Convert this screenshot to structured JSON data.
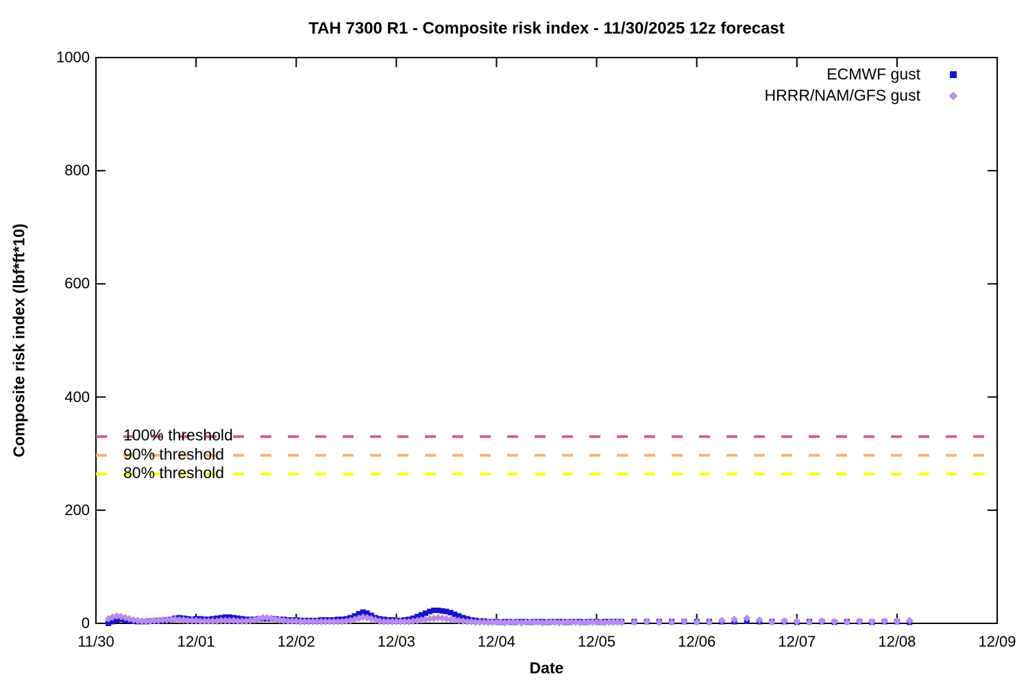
{
  "chart_data": {
    "type": "scatter",
    "title": "TAH 7300 R1 - Composite risk index - 11/30/2025 12z forecast",
    "xlabel": "Date",
    "ylabel": "Composite risk index (lbf*ft*10)",
    "x_tick_labels": [
      "11/30",
      "12/01",
      "12/02",
      "12/03",
      "12/04",
      "12/05",
      "12/06",
      "12/07",
      "12/08",
      "12/09"
    ],
    "x_range_days": [
      0,
      9
    ],
    "y_ticks": [
      0,
      200,
      400,
      600,
      800,
      1000
    ],
    "ylim": [
      0,
      1000
    ],
    "grid": false,
    "legend_position": "top-right-inside",
    "axis_color": "#000000",
    "background_color": "#ffffff",
    "thresholds": [
      {
        "label": "100% threshold",
        "value": 330,
        "color": "#d96075"
      },
      {
        "label": "90% threshold",
        "value": 297,
        "color": "#f7b36e"
      },
      {
        "label": "80% threshold",
        "value": 264,
        "color": "#ffff00"
      }
    ],
    "series": [
      {
        "name": "ECMWF gust",
        "marker": "square",
        "color": "#1414cc",
        "segments": [
          {
            "start_day": 0.125,
            "step_days": 0.0416667,
            "values": [
              0,
              3,
              6,
              7,
              6,
              5,
              4,
              3,
              3,
              3,
              4,
              4,
              5,
              5,
              6,
              7,
              9,
              10,
              9,
              8,
              7,
              8,
              8,
              7,
              7,
              8,
              9,
              10,
              11,
              11,
              10,
              9,
              8,
              7,
              7,
              7,
              8,
              8,
              8,
              8,
              8,
              7,
              7,
              6,
              6,
              6,
              5,
              5,
              5,
              5,
              5,
              6,
              6,
              6,
              6,
              7,
              7,
              8,
              10,
              13,
              17,
              20,
              18,
              14,
              10,
              8,
              7,
              6,
              6,
              5,
              5,
              6,
              7,
              9,
              12,
              15,
              18,
              21,
              23,
              23,
              22,
              21,
              19,
              16,
              13,
              10,
              8,
              6,
              5,
              4,
              4,
              3,
              3,
              3,
              2,
              3,
              3,
              2,
              3,
              3,
              3,
              2,
              3,
              3,
              3,
              2,
              3,
              3,
              3,
              3,
              2,
              3,
              3,
              3,
              2,
              3,
              3,
              3,
              2,
              3,
              3,
              3,
              3
            ]
          },
          {
            "start_day": 5.25,
            "step_days": 0.125,
            "values": [
              3,
              3,
              3,
              3,
              3,
              3,
              3,
              3,
              3,
              3,
              4,
              3,
              3,
              3,
              2,
              3,
              3,
              2,
              3,
              3,
              2,
              3,
              3,
              2
            ]
          }
        ]
      },
      {
        "name": "HRRR/NAM/GFS gust",
        "marker": "diamond",
        "color": "#b88cf0",
        "segments": [
          {
            "start_day": 0.125,
            "step_days": 0.0416667,
            "values": [
              8,
              11,
              13,
              12,
              10,
              8,
              6,
              5,
              4,
              4,
              4,
              5,
              5,
              6,
              6,
              7,
              7,
              6,
              6,
              5,
              5,
              5,
              4,
              4,
              4,
              4,
              4,
              5,
              5,
              5,
              5,
              4,
              4,
              4,
              5,
              6,
              8,
              10,
              10,
              9,
              7,
              6,
              5,
              4,
              4,
              4,
              3,
              3,
              3,
              3,
              3,
              3,
              3,
              3,
              3,
              3,
              3,
              4,
              5,
              7,
              9,
              11,
              10,
              8,
              6,
              4,
              3,
              3,
              3,
              3,
              3,
              3,
              3,
              4,
              5,
              6,
              7,
              8,
              9,
              10,
              9,
              8,
              7,
              6,
              5,
              4,
              3,
              3,
              2,
              2,
              2,
              2,
              2,
              2,
              2,
              1,
              2,
              2,
              2,
              1,
              2,
              2,
              2,
              2,
              1,
              2,
              2,
              2,
              1,
              2,
              2,
              2,
              2,
              1,
              2,
              2,
              2,
              2,
              2,
              1,
              2,
              2,
              2
            ]
          },
          {
            "start_day": 5.25,
            "step_days": 0.125,
            "values": [
              2,
              2,
              3,
              2,
              2,
              3,
              2,
              2,
              5,
              7,
              9,
              6,
              2,
              4,
              3,
              2,
              4,
              3,
              2,
              4,
              3,
              4,
              3,
              5
            ]
          }
        ]
      }
    ]
  }
}
